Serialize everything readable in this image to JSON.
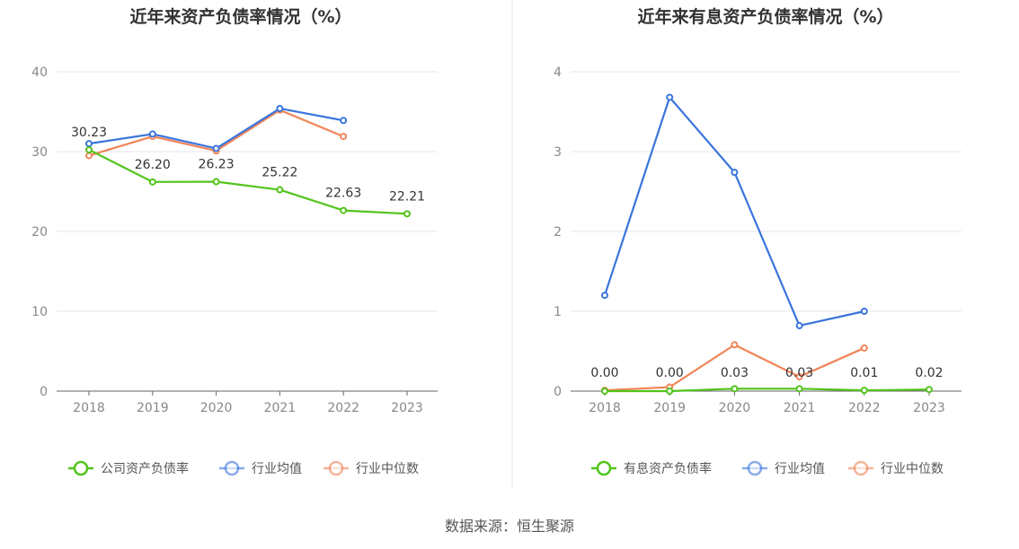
{
  "chart_data": [
    {
      "type": "line",
      "title": "近年来资产负债率情况（%）",
      "categories": [
        "2018",
        "2019",
        "2020",
        "2021",
        "2022",
        "2023"
      ],
      "ylim": [
        0,
        40
      ],
      "yticks": [
        "0",
        "10",
        "20",
        "30",
        "40"
      ],
      "grid": true,
      "legend_position": "bottom",
      "series": [
        {
          "name": "公司资产负债率",
          "color": "#52c41a",
          "values": [
            30.23,
            26.2,
            26.23,
            25.22,
            22.63,
            22.21
          ],
          "labels": [
            "30.23",
            "26.20",
            "26.23",
            "25.22",
            "22.63",
            "22.21"
          ]
        },
        {
          "name": "行业均值",
          "color": "#3a75dd",
          "values": [
            31.0,
            32.2,
            30.4,
            35.4,
            33.9,
            null
          ]
        },
        {
          "name": "行业中位数",
          "color": "#f08457",
          "values": [
            29.5,
            31.9,
            30.1,
            35.2,
            31.9,
            null
          ]
        }
      ]
    },
    {
      "type": "line",
      "title": "近年来有息资产负债率情况（%）",
      "categories": [
        "2018",
        "2019",
        "2020",
        "2021",
        "2022",
        "2023"
      ],
      "ylim": [
        0,
        4
      ],
      "yticks": [
        "0",
        "1",
        "2",
        "3",
        "4"
      ],
      "grid": true,
      "legend_position": "bottom",
      "series": [
        {
          "name": "有息资产负债率",
          "color": "#52c41a",
          "values": [
            0.0,
            0.0,
            0.03,
            0.03,
            0.01,
            0.02
          ],
          "labels": [
            "0.00",
            "0.00",
            "0.03",
            "0.03",
            "0.01",
            "0.02"
          ]
        },
        {
          "name": "行业均值",
          "color": "#3a75dd",
          "values": [
            1.2,
            3.68,
            2.74,
            0.82,
            1.0,
            null
          ]
        },
        {
          "name": "行业中位数",
          "color": "#f08457",
          "values": [
            0.01,
            0.05,
            0.58,
            0.18,
            0.54,
            null
          ]
        }
      ]
    }
  ],
  "source": "数据来源：恒生聚源"
}
